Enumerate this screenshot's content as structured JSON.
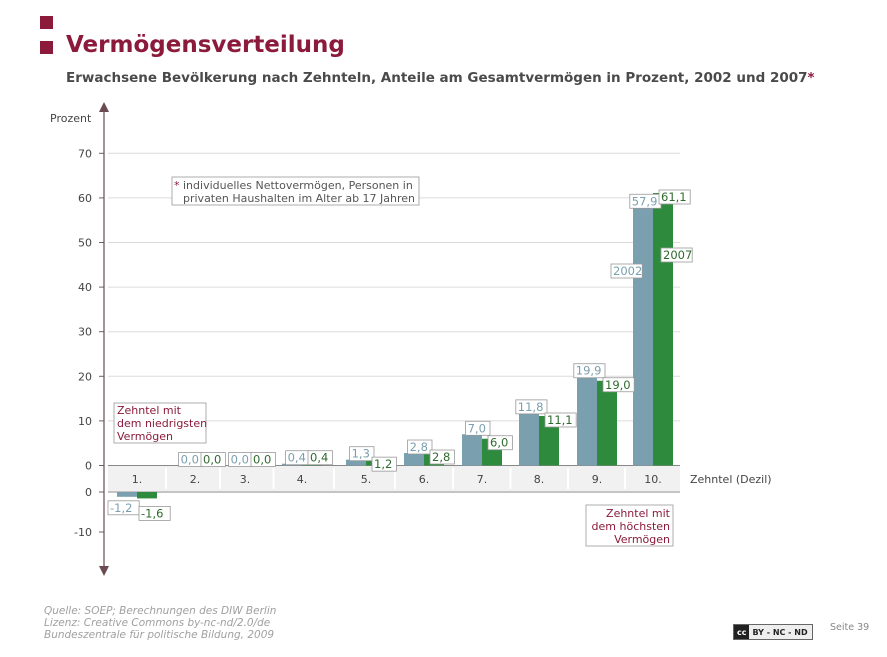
{
  "header": {
    "title": "Vermögensverteilung",
    "subtitle": "Erwachsene Bevölkerung nach Zehnteln, Anteile am Gesamtvermögen in Prozent, 2002 und 2007",
    "subtitle_star": "*"
  },
  "chart_data": {
    "type": "bar",
    "ylabel": "Prozent",
    "xlabel": "Zehntel (Dezil)",
    "categories": [
      "1.",
      "2.",
      "3.",
      "4.",
      "5.",
      "6.",
      "7.",
      "8.",
      "9.",
      "10."
    ],
    "series": [
      {
        "name": "2002",
        "color": "#7a9fae",
        "values": [
          -1.2,
          0.0,
          0.0,
          0.4,
          1.3,
          2.8,
          7.0,
          11.8,
          19.9,
          57.9
        ],
        "labels": [
          "-1,2",
          "0,0",
          "0,0",
          "0,4",
          "1,3",
          "2,8",
          "7,0",
          "11,8",
          "19,9",
          "57,9"
        ]
      },
      {
        "name": "2007",
        "color": "#2e8b3e",
        "values": [
          -1.6,
          0.0,
          0.0,
          0.4,
          1.2,
          2.8,
          6.0,
          11.1,
          19.0,
          61.1
        ],
        "labels": [
          "-1,6",
          "0,0",
          "0,0",
          "0,4",
          "1,2",
          "2,8",
          "6,0",
          "11,1",
          "19,0",
          "61,1"
        ]
      }
    ],
    "yticks_top": [
      0,
      10,
      20,
      30,
      40,
      50,
      60,
      70
    ],
    "yticks_bottom": [
      0,
      -10
    ],
    "ylim_top": [
      0,
      70
    ],
    "ylim_bottom": [
      -15,
      0
    ],
    "grid": true,
    "annotations": {
      "note_star": "*",
      "note_line1": "individuelles Nettovermögen, Personen in",
      "note_line2": "privaten Haushalten im Alter ab 17 Jahren",
      "lowest_line1": "Zehntel mit",
      "lowest_line2": "dem niedrigsten",
      "lowest_line3": "Vermögen",
      "highest_line1": "Zehntel mit",
      "highest_line2": "dem höchsten",
      "highest_line3": "Vermögen",
      "series_label_2002": "2002",
      "series_label_2007": "2007"
    }
  },
  "footer": {
    "source_line1": "Quelle: SOEP; Berechnungen des DIW Berlin",
    "source_line2": "Lizenz: Creative Commons by-nc-nd/2.0/de",
    "source_line3": "Bundeszentrale für politische Bildung, 2009",
    "license_badge_logo": "cc",
    "license_badge_text": "BY - NC - ND",
    "page_label": "Seite 39"
  },
  "colors": {
    "accent": "#8b1a3b",
    "bar_2002": "#7a9fae",
    "bar_2007": "#2e8b3e"
  }
}
